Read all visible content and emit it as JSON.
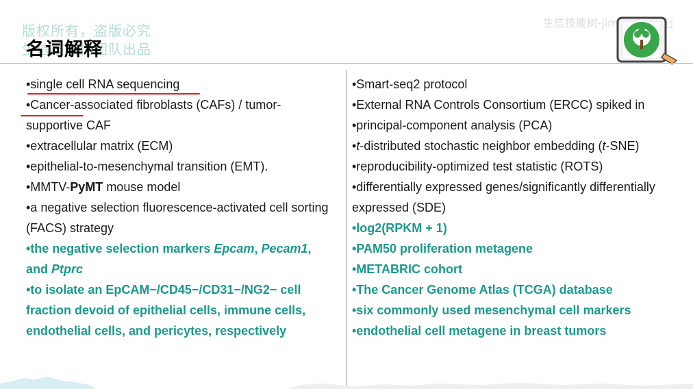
{
  "header": {
    "title": "名词解释",
    "watermark_line1": "版权所有，盗版必究",
    "watermark_line2": "生信技能树团队出品",
    "brand": "生信技能树-jimmy「视频」"
  },
  "left_column": {
    "item1": "•single cell RNA sequencing",
    "item2": "•Cancer-associated fibroblasts (CAFs) / tumor-supportive CAF",
    "item3": "•extracellular matrix (ECM)",
    "item4": "•epithelial-to-mesenchymal transition (EMT).",
    "item5_pre": "•MMTV-",
    "item5_bold": "PyMT",
    "item5_post": " mouse model",
    "item6": "•a negative selection fluorescence-activated cell sorting (FACS) strategy",
    "item7_a": "•the negative selection markers ",
    "item7_b": "Epcam",
    "item7_c": ", ",
    "item7_d": "Pecam1",
    "item7_e": ", and ",
    "item7_f": "Ptprc",
    "item8": "•to isolate an EpCAM−/CD45−/CD31−/NG2− cell fraction devoid of epithelial cells, immune cells, endothelial cells, and pericytes, respectively"
  },
  "right_column": {
    "item1": "•Smart-seq2 protocol",
    "item2": "•External RNA Controls Consortium (ERCC) spiked in",
    "item3": "•principal-component analysis (PCA)",
    "item4_a": "•",
    "item4_b": "t",
    "item4_c": "-distributed stochastic neighbor embedding (",
    "item4_d": "t",
    "item4_e": "-SNE)",
    "item5": "•reproducibility-optimized test statistic (ROTS)",
    "item6": "•differentially expressed genes/significantly differentially expressed (SDE)",
    "item7": "•log2(RPKM + 1)",
    "item8": "•PAM50 proliferation metagene",
    "item9": "•METABRIC cohort",
    "item10": "•The Cancer Genome Atlas (TCGA) database",
    "item11": "•six commonly used mesenchymal cell markers",
    "item12": "•endothelial cell metagene in breast tumors"
  },
  "colors": {
    "accent_teal": "#1a9a8c",
    "underline_red": "#e02020",
    "watermark": "#a8d8d0"
  },
  "icons": {
    "brand_logo": "tree-logo-icon",
    "tablet": "tablet-icon"
  }
}
